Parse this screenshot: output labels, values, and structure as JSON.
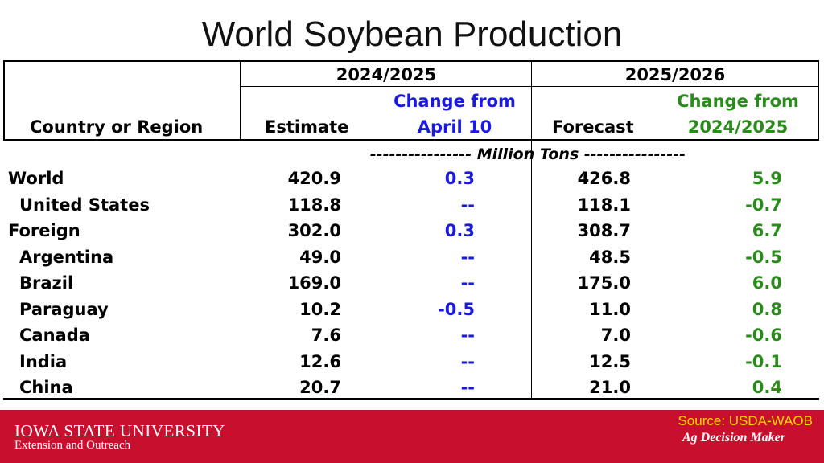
{
  "title": "World Soybean Production",
  "table": {
    "header": {
      "col1": "Country or Region",
      "period_a": "2024/2025",
      "period_b": "2025/2026",
      "estimate": "Estimate",
      "change_a_line1": "Change from",
      "change_a_line2": "April 10",
      "forecast": "Forecast",
      "change_b_line1": "Change from",
      "change_b_line2": "2024/2025"
    },
    "units": "---------------- Million Tons ----------------",
    "rows": [
      {
        "region": "World",
        "estimate": "420.9",
        "change_a": "0.3",
        "forecast": "426.8",
        "change_b": "5.9",
        "indent": false
      },
      {
        "region": "United States",
        "estimate": "118.8",
        "change_a": "--",
        "forecast": "118.1",
        "change_b": "-0.7",
        "indent": true
      },
      {
        "region": "Foreign",
        "estimate": "302.0",
        "change_a": "0.3",
        "forecast": "308.7",
        "change_b": "6.7",
        "indent": false
      },
      {
        "region": "Argentina",
        "estimate": "49.0",
        "change_a": "--",
        "forecast": "48.5",
        "change_b": "-0.5",
        "indent": true
      },
      {
        "region": "Brazil",
        "estimate": "169.0",
        "change_a": "--",
        "forecast": "175.0",
        "change_b": "6.0",
        "indent": true
      },
      {
        "region": "Paraguay",
        "estimate": "10.2",
        "change_a": "-0.5",
        "forecast": "11.0",
        "change_b": "0.8",
        "indent": true
      },
      {
        "region": "Canada",
        "estimate": "7.6",
        "change_a": "--",
        "forecast": "7.0",
        "change_b": "-0.6",
        "indent": true
      },
      {
        "region": "India",
        "estimate": "12.6",
        "change_a": "--",
        "forecast": "12.5",
        "change_b": "-0.1",
        "indent": true
      },
      {
        "region": "China",
        "estimate": "20.7",
        "change_a": "--",
        "forecast": "21.0",
        "change_b": "0.4",
        "indent": true
      }
    ]
  },
  "footer": {
    "university": "IOWA STATE UNIVERSITY",
    "extension": "Extension and Outreach",
    "source": "Source: USDA-WAOB",
    "brand": "Ag Decision Maker"
  },
  "colors": {
    "blue": "#1a1adf",
    "green": "#2a8a1c",
    "footer_red": "#c8102e",
    "source_yellow": "#ffd400"
  }
}
